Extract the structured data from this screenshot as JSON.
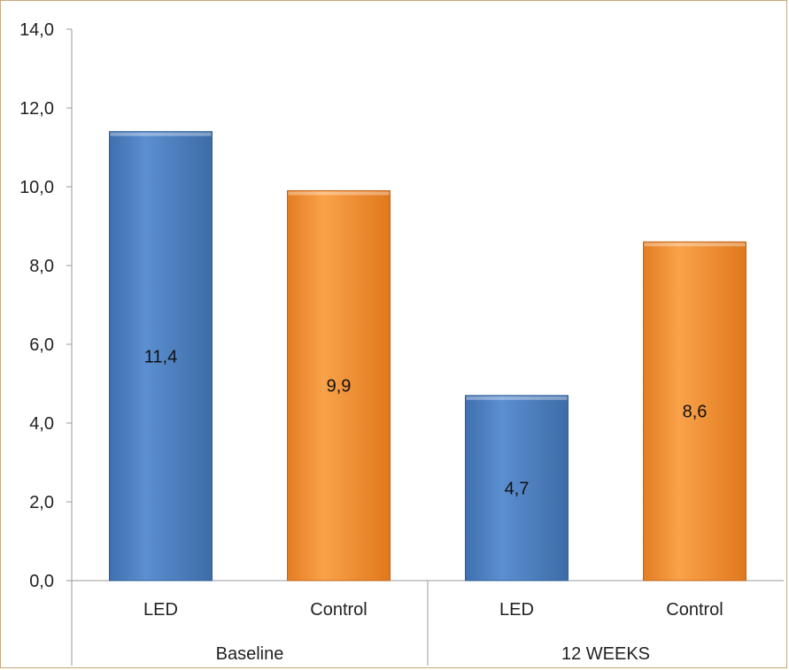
{
  "chart_data": {
    "type": "bar",
    "title": "",
    "xlabel": "",
    "ylabel": "",
    "ylim": [
      0,
      14
    ],
    "yticks": [
      "0,0",
      "2,0",
      "4,0",
      "6,0",
      "8,0",
      "10,0",
      "12,0",
      "14,0"
    ],
    "ytick_values": [
      0,
      2,
      4,
      6,
      8,
      10,
      12,
      14
    ],
    "groups": [
      {
        "label": "Baseline",
        "bars": [
          {
            "label": "LED",
            "value": 11.4,
            "value_label": "11,4",
            "color": "#4f81bd"
          },
          {
            "label": "Control",
            "value": 9.9,
            "value_label": "9,9",
            "color": "#f79646"
          }
        ]
      },
      {
        "label": "12 WEEKS",
        "bars": [
          {
            "label": "LED",
            "value": 4.7,
            "value_label": "4,7",
            "color": "#4f81bd"
          },
          {
            "label": "Control",
            "value": 8.6,
            "value_label": "8,6",
            "color": "#f79646"
          }
        ]
      }
    ],
    "grid": false,
    "legend": "none"
  }
}
